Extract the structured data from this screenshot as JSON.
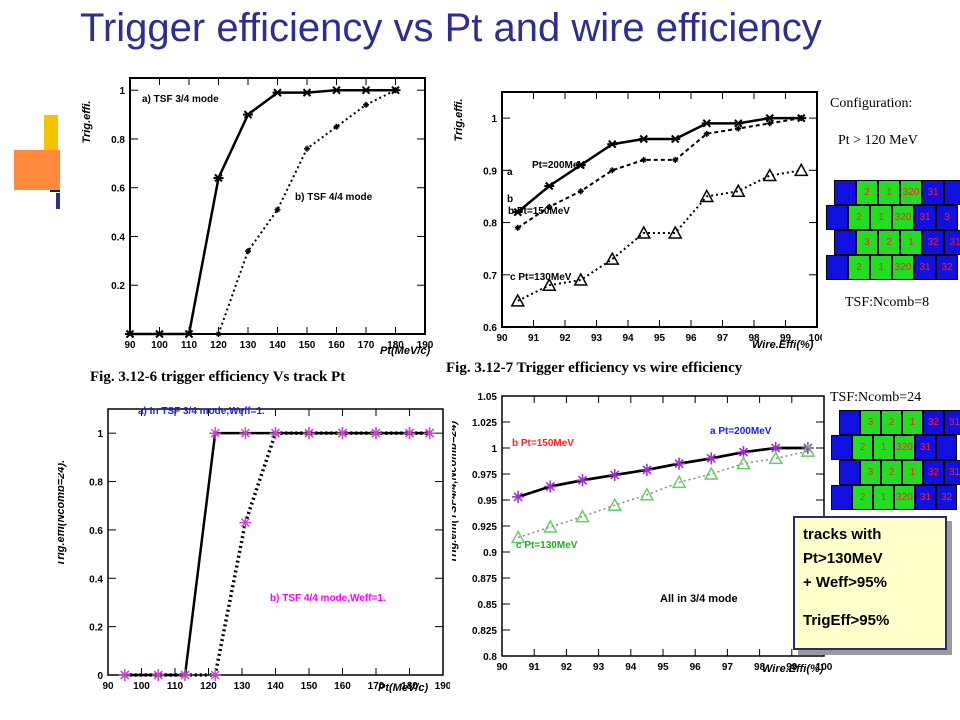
{
  "title": "Trigger efficiency vs Pt and wire efficiency",
  "captions": {
    "fig6": "Fig. 3.12-6 trigger efficiency Vs track Pt",
    "fig7": "Fig. 3.12-7 Trigger efficiency vs wire efficiency"
  },
  "config": {
    "label": "Configuration:",
    "pt_cut": "Pt > 120 MeV",
    "ncomb8": "TSF:Ncomb=8",
    "ncomb24": "TSF:Ncomb=24",
    "cells_row_a": [
      "2",
      "1",
      "320",
      "31"
    ],
    "cells_row_b": [
      "2",
      "1",
      "320",
      "31",
      "3"
    ],
    "cells_row_c": [
      "3",
      "2",
      "1",
      "32",
      "31"
    ],
    "cells_row_d": [
      "2",
      "1",
      "320",
      "31",
      "32"
    ]
  },
  "callout": {
    "line1": "tracks with",
    "line2": "Pt>130MeV",
    "line3": "+ Weff>95%",
    "line4": "TrigEff>95%"
  },
  "colors": {
    "title": "#2e2e8c",
    "green_cell": "#22dd22",
    "blue_cell": "#1010e0",
    "cell_text": "#ff2020",
    "star_purple": "#aa44cc",
    "callout_bg": "#ffffcc"
  },
  "chart_data": [
    {
      "type": "line",
      "xlabel": "Pt(MeV/c)",
      "ylabel": "Trig.effi.",
      "xlim": [
        90,
        190
      ],
      "ylim": [
        0,
        1.05
      ],
      "xticks": [
        "90",
        "100",
        "110",
        "120",
        "130",
        "140",
        "150",
        "160",
        "170",
        "180",
        "190"
      ],
      "yticks": [
        "0.2",
        "0.4",
        "0.6",
        "0.8",
        "1"
      ],
      "ytick_values": [
        0.2,
        0.4,
        0.6,
        0.8,
        1.0
      ],
      "annotations": [
        "a) TSF 3/4 mode",
        "b) TSF 4/4 mode"
      ],
      "series": [
        {
          "name": "a) TSF 3/4 mode",
          "x": [
            90,
            100,
            110,
            120,
            130,
            140,
            150,
            160,
            170,
            180
          ],
          "y": [
            0,
            0,
            0,
            0.64,
            0.9,
            0.99,
            0.99,
            1.0,
            1.0,
            1.0
          ],
          "style": "solid"
        },
        {
          "name": "b) TSF 4/4 mode",
          "x": [
            120,
            130,
            140,
            150,
            160,
            170,
            180
          ],
          "y": [
            0,
            0.34,
            0.51,
            0.76,
            0.85,
            0.94,
            1.0
          ],
          "style": "dotted"
        }
      ]
    },
    {
      "type": "line",
      "xlabel": "Wire.Effi(%)",
      "ylabel": "Trig.effi.",
      "xlim": [
        90,
        100
      ],
      "ylim": [
        0.6,
        1.05
      ],
      "xticks": [
        "90",
        "91",
        "92",
        "93",
        "94",
        "95",
        "96",
        "97",
        "98",
        "99",
        "100"
      ],
      "yticks": [
        "0.6",
        "0.7",
        "0.8",
        "0.9",
        "1"
      ],
      "ytick_values": [
        0.6,
        0.7,
        0.8,
        0.9,
        1.0
      ],
      "annotations": [
        "Pt=200MeV",
        "b Pt=150MeV",
        "c Pt=130MeV",
        "a",
        "b"
      ],
      "series": [
        {
          "name": "Pt=200MeV",
          "x": [
            90.5,
            91.5,
            92.5,
            93.5,
            94.5,
            95.5,
            96.5,
            97.5,
            98.5,
            99.5
          ],
          "y": [
            0.82,
            0.87,
            0.91,
            0.95,
            0.96,
            0.96,
            0.99,
            0.99,
            1.0,
            1.0
          ],
          "style": "solid"
        },
        {
          "name": "Pt=150MeV",
          "x": [
            90.5,
            91.5,
            92.5,
            93.5,
            94.5,
            95.5,
            96.5,
            97.5,
            98.5,
            99.5
          ],
          "y": [
            0.79,
            0.83,
            0.86,
            0.9,
            0.92,
            0.92,
            0.97,
            0.98,
            0.99,
            1.0
          ],
          "style": "dashed"
        },
        {
          "name": "Pt=130MeV",
          "x": [
            90.5,
            91.5,
            92.5,
            93.5,
            94.5,
            95.5,
            96.5,
            97.5,
            98.5,
            99.5
          ],
          "y": [
            0.65,
            0.68,
            0.69,
            0.73,
            0.78,
            0.78,
            0.85,
            0.86,
            0.89,
            0.9
          ],
          "style": "dotted"
        }
      ]
    },
    {
      "type": "line",
      "xlabel": "Pt(MeV/c)",
      "ylabel": "Trig.effi(Ncomb=24).",
      "xlim": [
        90,
        190
      ],
      "ylim": [
        0,
        1.1
      ],
      "xticks": [
        "90",
        "100",
        "110",
        "120",
        "130",
        "140",
        "150",
        "160",
        "170",
        "180",
        "190"
      ],
      "yticks": [
        "0",
        "0.2",
        "0.4",
        "0.6",
        "0.8",
        "1"
      ],
      "ytick_values": [
        0,
        0.2,
        0.4,
        0.6,
        0.8,
        1.0
      ],
      "annotations": [
        "a) In TSF 3/4 mode,Weff=1.",
        "b) TSF 4/4 mode,Weff=1."
      ],
      "series": [
        {
          "name": "a) In TSF 3/4 mode,Weff=1.",
          "x": [
            95,
            105,
            113,
            122,
            131,
            140,
            150,
            160,
            170,
            180,
            186
          ],
          "y": [
            0,
            0,
            0,
            1,
            1,
            1,
            1,
            1,
            1,
            1,
            1
          ],
          "style": "solid"
        },
        {
          "name": "b) TSF 4/4 mode,Weff=1.",
          "x": [
            95,
            105,
            113,
            122,
            131,
            140,
            150,
            160,
            170,
            180,
            186
          ],
          "y": [
            0,
            0,
            0,
            0,
            0.63,
            1,
            1,
            1,
            1,
            1,
            1
          ],
          "style": "dotted"
        }
      ]
    },
    {
      "type": "line",
      "xlabel": "Wire.Effi(%)",
      "ylabel": "Trig.effi(TSF4/4,Ncomb=24)",
      "xlim": [
        90,
        100
      ],
      "ylim": [
        0.8,
        1.05
      ],
      "xticks": [
        "90",
        "91",
        "92",
        "93",
        "94",
        "95",
        "96",
        "97",
        "98",
        "99",
        "100"
      ],
      "yticks": [
        "0.8",
        "0.825",
        "0.85",
        "0.875",
        "0.9",
        "0.925",
        "0.95",
        "0.975",
        "1",
        "1.025",
        "1.05"
      ],
      "ytick_values": [
        0.8,
        0.825,
        0.85,
        0.875,
        0.9,
        0.925,
        0.95,
        0.975,
        1.0,
        1.025,
        1.05
      ],
      "annotations": [
        "a Pt=200MeV",
        "b Pt=150MeV",
        "c Pt=130MeV",
        "All in 3/4 mode"
      ],
      "series": [
        {
          "name": "a Pt=200MeV",
          "x": [
            90.5,
            91.5,
            92.5,
            93.5,
            94.5,
            95.5,
            96.5,
            97.5,
            98.5,
            99.5
          ],
          "y": [
            0.953,
            0.963,
            0.969,
            0.974,
            0.979,
            0.985,
            0.99,
            0.996,
            1.0,
            1.0
          ],
          "style": "solid"
        },
        {
          "name": "b Pt=150MeV",
          "x": [
            90.5,
            91.5,
            92.5,
            93.5,
            94.5,
            95.5,
            96.5,
            97.5,
            98.5,
            99.5
          ],
          "y": [
            0.953,
            0.963,
            0.969,
            0.974,
            0.979,
            0.985,
            0.99,
            0.996,
            1.0,
            1.0
          ],
          "style": "solid"
        },
        {
          "name": "c Pt=130MeV",
          "x": [
            90.5,
            91.5,
            92.5,
            93.5,
            94.5,
            95.5,
            96.5,
            97.5,
            98.5,
            99.5
          ],
          "y": [
            0.914,
            0.924,
            0.934,
            0.945,
            0.955,
            0.967,
            0.975,
            0.985,
            0.99,
            0.997
          ],
          "style": "dotted"
        }
      ]
    }
  ]
}
